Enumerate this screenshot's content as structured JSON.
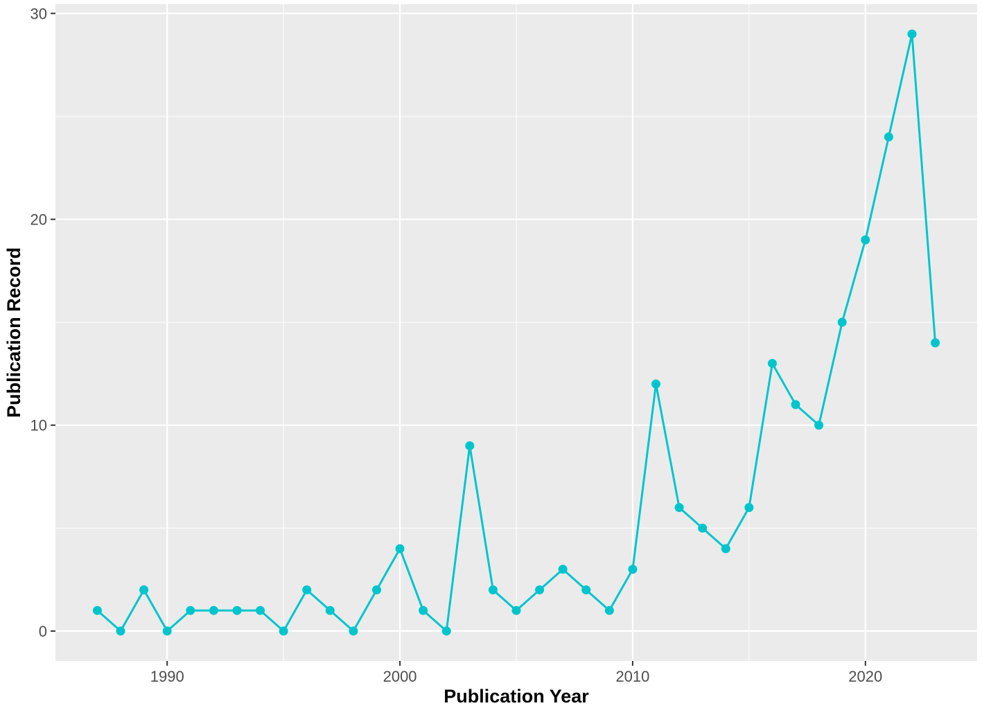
{
  "chart_data": {
    "type": "line",
    "title": "",
    "xlabel": "Publication Year",
    "ylabel": "Publication Record",
    "xlim": [
      1985.2,
      2024.8
    ],
    "ylim": [
      -1.45,
      30.45
    ],
    "x_ticks": [
      1990,
      2000,
      2010,
      2020
    ],
    "y_ticks": [
      0,
      10,
      20,
      30
    ],
    "x_tick_labels": [
      "1990",
      "2000",
      "2010",
      "2020"
    ],
    "y_tick_labels": [
      "0",
      "10",
      "20",
      "30"
    ],
    "grid": true,
    "legend": "none",
    "series": [
      {
        "color": "#00C5CD",
        "x": [
          1987,
          1988,
          1989,
          1990,
          1991,
          1992,
          1993,
          1994,
          1995,
          1996,
          1997,
          1998,
          1999,
          2000,
          2001,
          2002,
          2003,
          2004,
          2005,
          2006,
          2007,
          2008,
          2009,
          2010,
          2011,
          2012,
          2013,
          2014,
          2015,
          2016,
          2017,
          2018,
          2019,
          2020,
          2021,
          2022,
          2023
        ],
        "y": [
          1,
          0,
          2,
          0,
          1,
          1,
          1,
          1,
          0,
          2,
          1,
          0,
          2,
          4,
          1,
          0,
          9,
          2,
          1,
          2,
          3,
          2,
          1,
          3,
          12,
          6,
          5,
          4,
          6,
          13,
          11,
          10,
          15,
          19,
          24,
          29,
          14
        ]
      }
    ]
  },
  "colors": {
    "panel_background": "#EBEBEB",
    "grid_major": "#FFFFFF",
    "line": "#00C5CD",
    "tick_text": "#4d4d4d",
    "title_text": "#000000"
  }
}
